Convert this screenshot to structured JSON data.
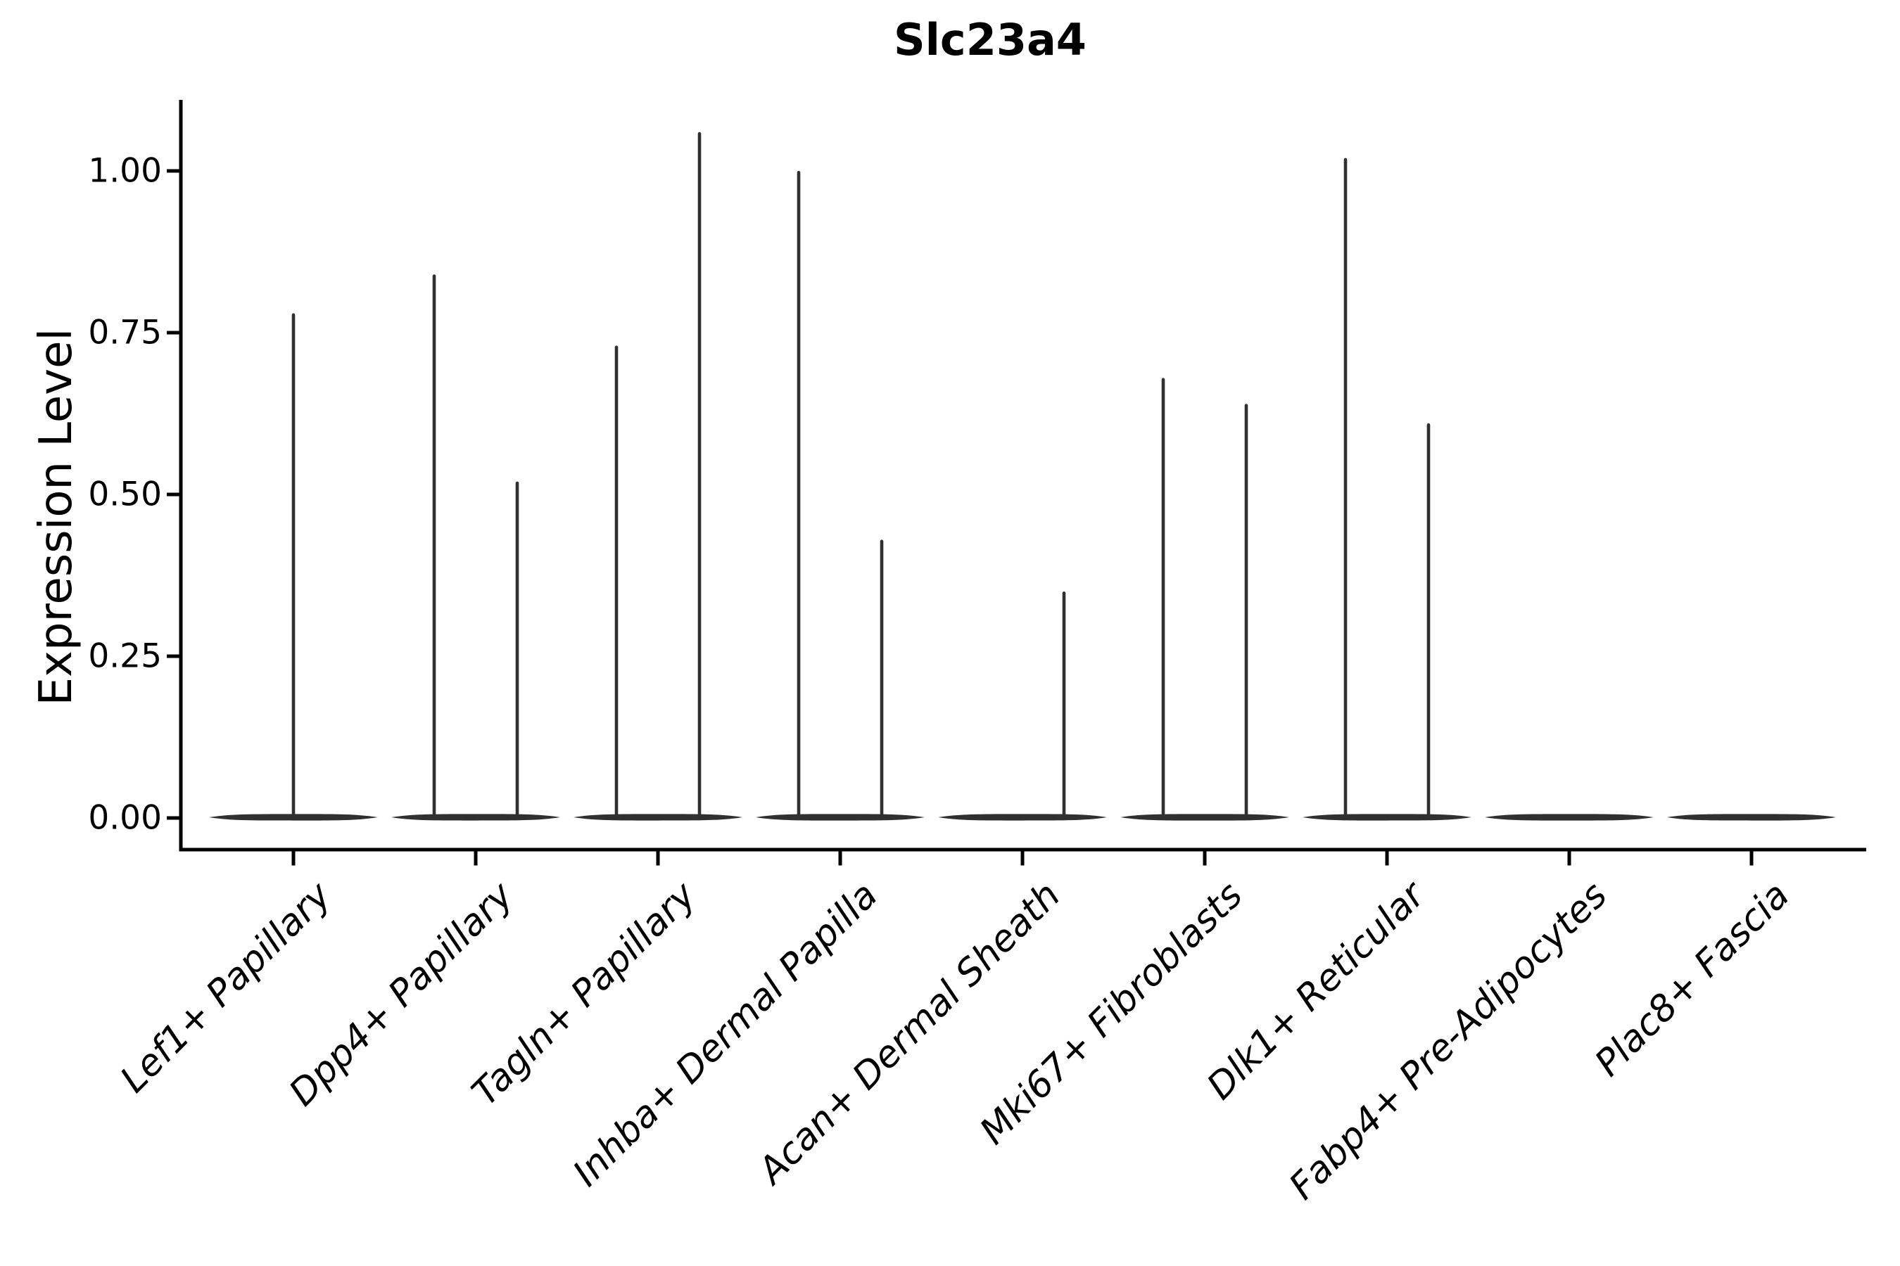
{
  "title": "Slc23a4",
  "y_axis": {
    "label": "Expression Level",
    "ticks": [
      {
        "label": "1.00",
        "value": 1.0
      },
      {
        "label": "0.75",
        "value": 0.75
      },
      {
        "label": "0.50",
        "value": 0.5
      },
      {
        "label": "0.25",
        "value": 0.25
      },
      {
        "label": "0.00",
        "value": 0.0
      }
    ]
  },
  "x_axis": {
    "categories": [
      "Lef1+ Papillary",
      "Dpp4+ Papillary",
      "Tagln+ Papillary",
      "Inhba+ Dermal Papilla",
      "Acan+ Dermal Sheath",
      "Mki67+ Fibroblasts",
      "Dlk1+ Reticular",
      "Fabp4+ Pre-Adipocytes",
      "Plac8+ Fascia"
    ]
  },
  "chart_data": {
    "type": "violin",
    "title": "Slc23a4",
    "xlabel": "",
    "ylabel": "Expression Level",
    "ylim": [
      -0.05,
      1.11
    ],
    "yticks": [
      0.0,
      0.25,
      0.5,
      0.75,
      1.0
    ],
    "grid": false,
    "legend": "none",
    "description": "Violin plot; bulk of cells at expression 0 (flat disc at baseline) with thin density spikes up to the max expression value; two split violins per category where present.",
    "categories": [
      {
        "name": "Lef1+ Papillary",
        "baseline_disc": true,
        "spikes": [
          {
            "offset": 0,
            "peak": 0.78
          }
        ]
      },
      {
        "name": "Dpp4+ Papillary",
        "baseline_disc": true,
        "spikes": [
          {
            "offset": -1,
            "peak": 0.84
          },
          {
            "offset": 1,
            "peak": 0.52
          }
        ]
      },
      {
        "name": "Tagln+ Papillary",
        "baseline_disc": true,
        "spikes": [
          {
            "offset": -1,
            "peak": 0.73
          },
          {
            "offset": 1,
            "peak": 1.06
          }
        ]
      },
      {
        "name": "Inhba+ Dermal Papilla",
        "baseline_disc": true,
        "spikes": [
          {
            "offset": -1,
            "peak": 1.0
          },
          {
            "offset": 1,
            "peak": 0.43
          }
        ]
      },
      {
        "name": "Acan+ Dermal Sheath",
        "baseline_disc": true,
        "spikes": [
          {
            "offset": 1,
            "peak": 0.35
          }
        ]
      },
      {
        "name": "Mki67+ Fibroblasts",
        "baseline_disc": true,
        "spikes": [
          {
            "offset": -1,
            "peak": 0.68
          },
          {
            "offset": 1,
            "peak": 0.64
          }
        ]
      },
      {
        "name": "Dlk1+ Reticular",
        "baseline_disc": true,
        "spikes": [
          {
            "offset": -1,
            "peak": 1.02
          },
          {
            "offset": 1,
            "peak": 0.61
          }
        ]
      },
      {
        "name": "Fabp4+ Pre-Adipocytes",
        "baseline_disc": true,
        "spikes": []
      },
      {
        "name": "Plac8+ Fascia",
        "baseline_disc": true,
        "spikes": []
      }
    ],
    "colors": {
      "violin": "#303030",
      "axis": "#000000",
      "text": "#000000"
    }
  }
}
